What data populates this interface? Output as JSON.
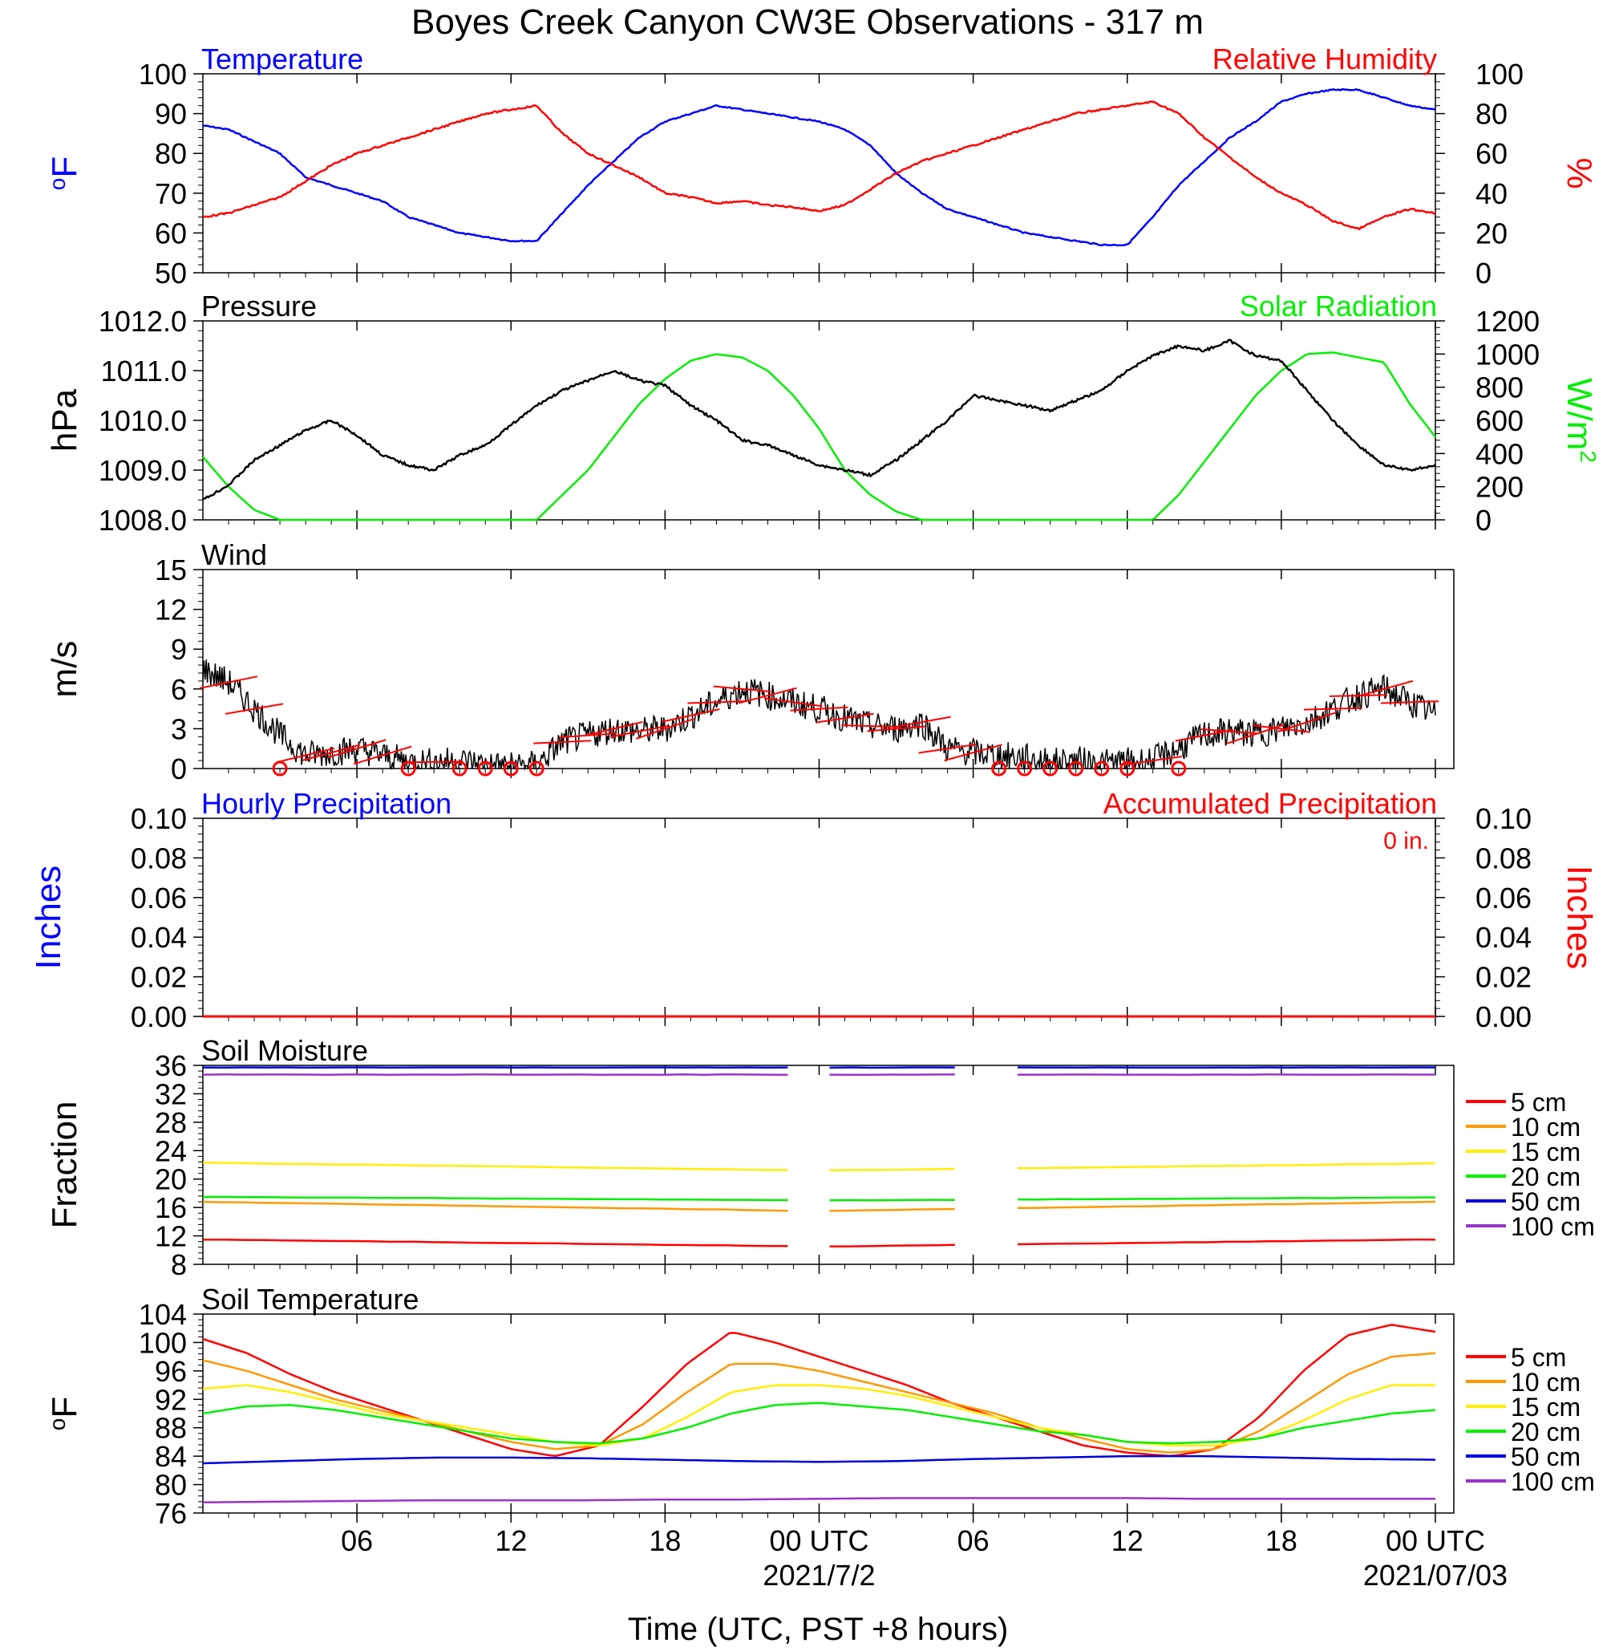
{
  "page": {
    "title": "Boyes Creek Canyon CW3E Observations - 317 m",
    "x_axis_label": "Time (UTC, PST +8 hours)",
    "x_ticks": [
      "06",
      "12",
      "18",
      "00 UTC",
      "06",
      "12",
      "18",
      "00 UTC"
    ],
    "date_labels": [
      "2021/7/2",
      "2021/07/03"
    ]
  },
  "colors": {
    "temperature": "#0000ff",
    "humidity": "#ff0000",
    "pressure": "#000000",
    "solar": "#00ee00",
    "wind": "#000000",
    "barb": "#ff0000",
    "soil": {
      "5 cm": "#ff0000",
      "10 cm": "#ff9900",
      "15 cm": "#ffee00",
      "20 cm": "#00ee00",
      "50 cm": "#0000dd",
      "100 cm": "#9933cc"
    }
  },
  "chart_data": [
    {
      "type": "line",
      "left_label": "Temperature",
      "right_label": "Relative Humidity",
      "left_units": "oF",
      "right_units": "%",
      "x_hours": [
        1,
        2,
        3,
        4,
        5,
        6,
        7,
        8,
        9,
        10,
        11,
        12,
        13,
        14,
        15,
        16,
        17,
        18,
        19,
        20,
        21,
        22,
        23,
        24,
        25,
        26,
        27,
        28,
        29,
        30,
        31,
        32,
        33,
        34,
        35,
        36,
        37,
        38,
        39,
        40,
        41,
        42,
        43,
        44,
        45,
        46,
        47,
        48,
        49
      ],
      "ylim_left": [
        50,
        100
      ],
      "ylim_right": [
        0,
        100
      ],
      "y_ticks_left": [
        "100",
        "90",
        "80",
        "70",
        "60",
        "50"
      ],
      "y_ticks_right": [
        "100",
        "80",
        "60",
        "40",
        "20",
        "0"
      ],
      "series": [
        {
          "axis": "left",
          "values": [
            87,
            86,
            83,
            80,
            74,
            72,
            70,
            68,
            64,
            62,
            60,
            59,
            58,
            58,
            65,
            72,
            78,
            84,
            88,
            90,
            92,
            91,
            90,
            89,
            88,
            86,
            82,
            75,
            70,
            66,
            64,
            62,
            60,
            59,
            58,
            57,
            57,
            64,
            72,
            78,
            84,
            88,
            93,
            95,
            96,
            96,
            94,
            92,
            91
          ]
        },
        {
          "axis": "right",
          "values": [
            28,
            30,
            34,
            38,
            46,
            54,
            60,
            64,
            68,
            72,
            76,
            80,
            82,
            84,
            70,
            60,
            54,
            48,
            40,
            38,
            35,
            36,
            34,
            33,
            31,
            34,
            42,
            50,
            56,
            60,
            64,
            68,
            72,
            76,
            80,
            82,
            84,
            86,
            80,
            68,
            58,
            48,
            40,
            34,
            26,
            22,
            28,
            32,
            30
          ]
        }
      ]
    },
    {
      "type": "line",
      "left_label": "Pressure",
      "right_label": "Solar Radiation",
      "left_units": "hPa",
      "right_units": "W/m2",
      "ylim_left": [
        1008.0,
        1012.0
      ],
      "ylim_right": [
        0,
        1200
      ],
      "y_ticks_left": [
        "1012.0",
        "1011.0",
        "1010.0",
        "1009.0",
        "1008.0"
      ],
      "y_ticks_right": [
        "1200",
        "1000",
        "800",
        "600",
        "400",
        "200",
        "0"
      ],
      "series": [
        {
          "axis": "left",
          "values": [
            1008.4,
            1008.7,
            1009.2,
            1009.5,
            1009.8,
            1010.0,
            1009.7,
            1009.3,
            1009.1,
            1009.0,
            1009.3,
            1009.5,
            1009.9,
            1010.3,
            1010.6,
            1010.8,
            1011.0,
            1010.8,
            1010.7,
            1010.3,
            1010.0,
            1009.6,
            1009.5,
            1009.3,
            1009.1,
            1009.0,
            1008.9,
            1009.2,
            1009.6,
            1010.0,
            1010.5,
            1010.4,
            1010.3,
            1010.2,
            1010.4,
            1010.6,
            1011.0,
            1011.3,
            1011.5,
            1011.4,
            1011.6,
            1011.3,
            1011.2,
            1010.6,
            1010.0,
            1009.5,
            1009.1,
            1009.0,
            1009.1
          ]
        },
        {
          "axis": "right",
          "values": [
            380,
            200,
            60,
            0,
            0,
            0,
            0,
            0,
            0,
            0,
            0,
            0,
            0,
            0,
            150,
            300,
            500,
            700,
            850,
            960,
            1000,
            980,
            900,
            750,
            550,
            300,
            150,
            50,
            0,
            0,
            0,
            0,
            0,
            0,
            0,
            0,
            0,
            0,
            150,
            350,
            550,
            750,
            900,
            1000,
            1010,
            980,
            950,
            700,
            500
          ]
        }
      ]
    },
    {
      "type": "line",
      "left_label": "Wind",
      "left_units": "m/s",
      "ylim_left": [
        0,
        15
      ],
      "y_ticks_left": [
        "15",
        "12",
        "9",
        "6",
        "3",
        "0"
      ],
      "series": [
        {
          "axis": "left",
          "values": [
            7.5,
            6.5,
            4.5,
            2.5,
            1.0,
            1.2,
            1.5,
            1.0,
            0.5,
            0.5,
            0.6,
            0.3,
            0.2,
            0.3,
            2.0,
            2.5,
            3.0,
            2.8,
            3.0,
            4.0,
            5.0,
            6.0,
            5.5,
            5.0,
            4.5,
            3.8,
            3.2,
            3.0,
            3.5,
            1.5,
            1.2,
            1.0,
            0.8,
            0.5,
            0.6,
            0.4,
            0.5,
            0.6,
            1.5,
            2.5,
            2.8,
            2.6,
            3.0,
            3.5,
            4.5,
            5.5,
            6.0,
            5.0,
            4.0
          ]
        }
      ],
      "calm_markers_hours": [
        4,
        9,
        11,
        12,
        13,
        14,
        32,
        33,
        34,
        35,
        36,
        37,
        39
      ]
    },
    {
      "type": "line",
      "left_label": "Hourly Precipitation",
      "right_label": "Accumulated Precipitation",
      "left_units": "Inches",
      "right_units": "Inches",
      "accumulated_text": "0 in.",
      "ylim_left": [
        0,
        0.1
      ],
      "ylim_right": [
        0,
        0.1
      ],
      "y_ticks_left": [
        "0.10",
        "0.08",
        "0.06",
        "0.04",
        "0.02",
        "0.00"
      ],
      "y_ticks_right": [
        "0.10",
        "0.08",
        "0.06",
        "0.04",
        "0.02",
        "0.00"
      ],
      "series": [
        {
          "axis": "right",
          "values": [
            0,
            0
          ]
        }
      ]
    },
    {
      "type": "line",
      "left_label": "Soil Moisture",
      "left_units": "Fraction",
      "ylim_left": [
        8,
        36
      ],
      "y_ticks_left": [
        "36",
        "32",
        "28",
        "24",
        "20",
        "16",
        "12",
        "8"
      ],
      "gaps_hours": [
        [
          24.0,
          25.0
        ],
        [
          31.0,
          32.0
        ]
      ],
      "series": [
        {
          "name": "5 cm",
          "values": [
            11.5,
            10.5,
            11.5
          ]
        },
        {
          "name": "10 cm",
          "values": [
            16.8,
            15.5,
            16.8
          ]
        },
        {
          "name": "15 cm",
          "values": [
            22.3,
            21.2,
            22.2
          ]
        },
        {
          "name": "20 cm",
          "values": [
            17.5,
            17.0,
            17.4
          ]
        },
        {
          "name": "50 cm",
          "values": [
            35.7,
            35.7,
            35.7
          ]
        },
        {
          "name": "100 cm",
          "values": [
            34.7,
            34.7,
            34.7
          ]
        }
      ]
    },
    {
      "type": "line",
      "left_label": "Soil Temperature",
      "left_units": "oF",
      "ylim_left": [
        76,
        104
      ],
      "y_ticks_left": [
        "104",
        "100",
        "96",
        "92",
        "88",
        "84",
        "80",
        "76"
      ],
      "series": [
        {
          "name": "5 cm",
          "values": [
            100.5,
            98.5,
            95.5,
            93.0,
            91.0,
            89.0,
            87.0,
            85.0,
            84.0,
            85.5,
            91.0,
            97.0,
            101.5,
            100.0,
            98.0,
            96.0,
            94.0,
            91.5,
            89.5,
            87.5,
            85.5,
            84.5,
            84.0,
            85.0,
            89.5,
            96.0,
            101.0,
            102.5,
            101.5
          ]
        },
        {
          "name": "10 cm",
          "values": [
            97.5,
            96.0,
            94.0,
            92.0,
            90.5,
            89.0,
            87.5,
            86.0,
            85.0,
            85.5,
            88.5,
            93.0,
            97.0,
            97.0,
            96.0,
            94.5,
            93.0,
            91.5,
            90.0,
            88.0,
            86.5,
            85.0,
            84.5,
            85.0,
            87.5,
            91.5,
            95.5,
            98.0,
            98.5
          ]
        },
        {
          "name": "15 cm",
          "values": [
            93.5,
            94.0,
            93.0,
            91.5,
            90.0,
            89.0,
            88.0,
            87.0,
            86.0,
            85.5,
            86.5,
            89.5,
            93.0,
            94.0,
            94.0,
            93.5,
            92.5,
            91.0,
            89.5,
            88.0,
            87.0,
            86.0,
            85.5,
            85.5,
            86.5,
            89.0,
            92.0,
            94.0,
            94.0
          ]
        },
        {
          "name": "20 cm",
          "values": [
            90.0,
            91.0,
            91.2,
            90.5,
            89.5,
            88.5,
            87.5,
            86.5,
            86.0,
            85.8,
            86.5,
            88.0,
            90.0,
            91.2,
            91.5,
            91.0,
            90.5,
            89.5,
            88.5,
            87.5,
            87.0,
            86.0,
            85.8,
            86.0,
            86.5,
            88.0,
            89.0,
            90.0,
            90.5
          ]
        },
        {
          "name": "50 cm",
          "values": [
            83.0,
            83.3,
            83.6,
            83.8,
            83.8,
            83.7,
            83.5,
            83.3,
            83.2,
            83.3,
            83.6,
            83.8,
            84.0,
            84.0,
            83.8,
            83.6,
            83.5
          ]
        },
        {
          "name": "100 cm",
          "values": [
            77.5,
            77.6,
            77.7,
            77.8,
            77.8,
            77.8,
            77.9,
            77.9,
            78.0,
            78.1,
            78.1,
            78.1,
            78.1,
            78.0,
            78.0,
            78.0,
            78.0
          ]
        }
      ]
    }
  ]
}
